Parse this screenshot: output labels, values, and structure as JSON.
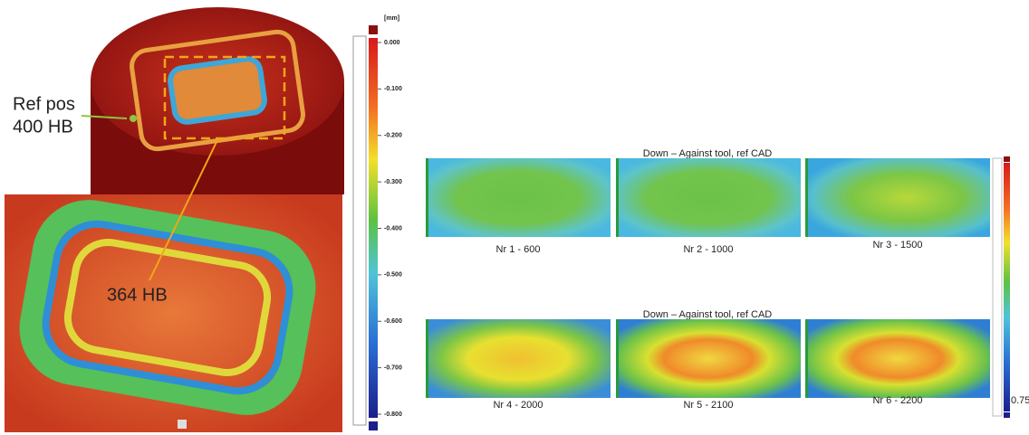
{
  "left": {
    "ref_label": [
      "Ref pos",
      "400 HB"
    ],
    "zoom_label": "364 HB",
    "scale_unit": "[mm]",
    "scale_ticks": [
      "0.000",
      "-0.100",
      "-0.200",
      "-0.300",
      "-0.400",
      "-0.500",
      "-0.600",
      "-0.700",
      "-0.800"
    ]
  },
  "right": {
    "row_titles": [
      "Down – Against tool, ref CAD",
      "Down – Against tool, ref CAD"
    ],
    "panels": [
      "Nr 1 - 600",
      "Nr 2 - 1000",
      "Nr 3 - 1500",
      "Nr 4 - 2000",
      "Nr 5 - 2100",
      "Nr 6 - 2200"
    ],
    "scale_end": "0.75"
  }
}
